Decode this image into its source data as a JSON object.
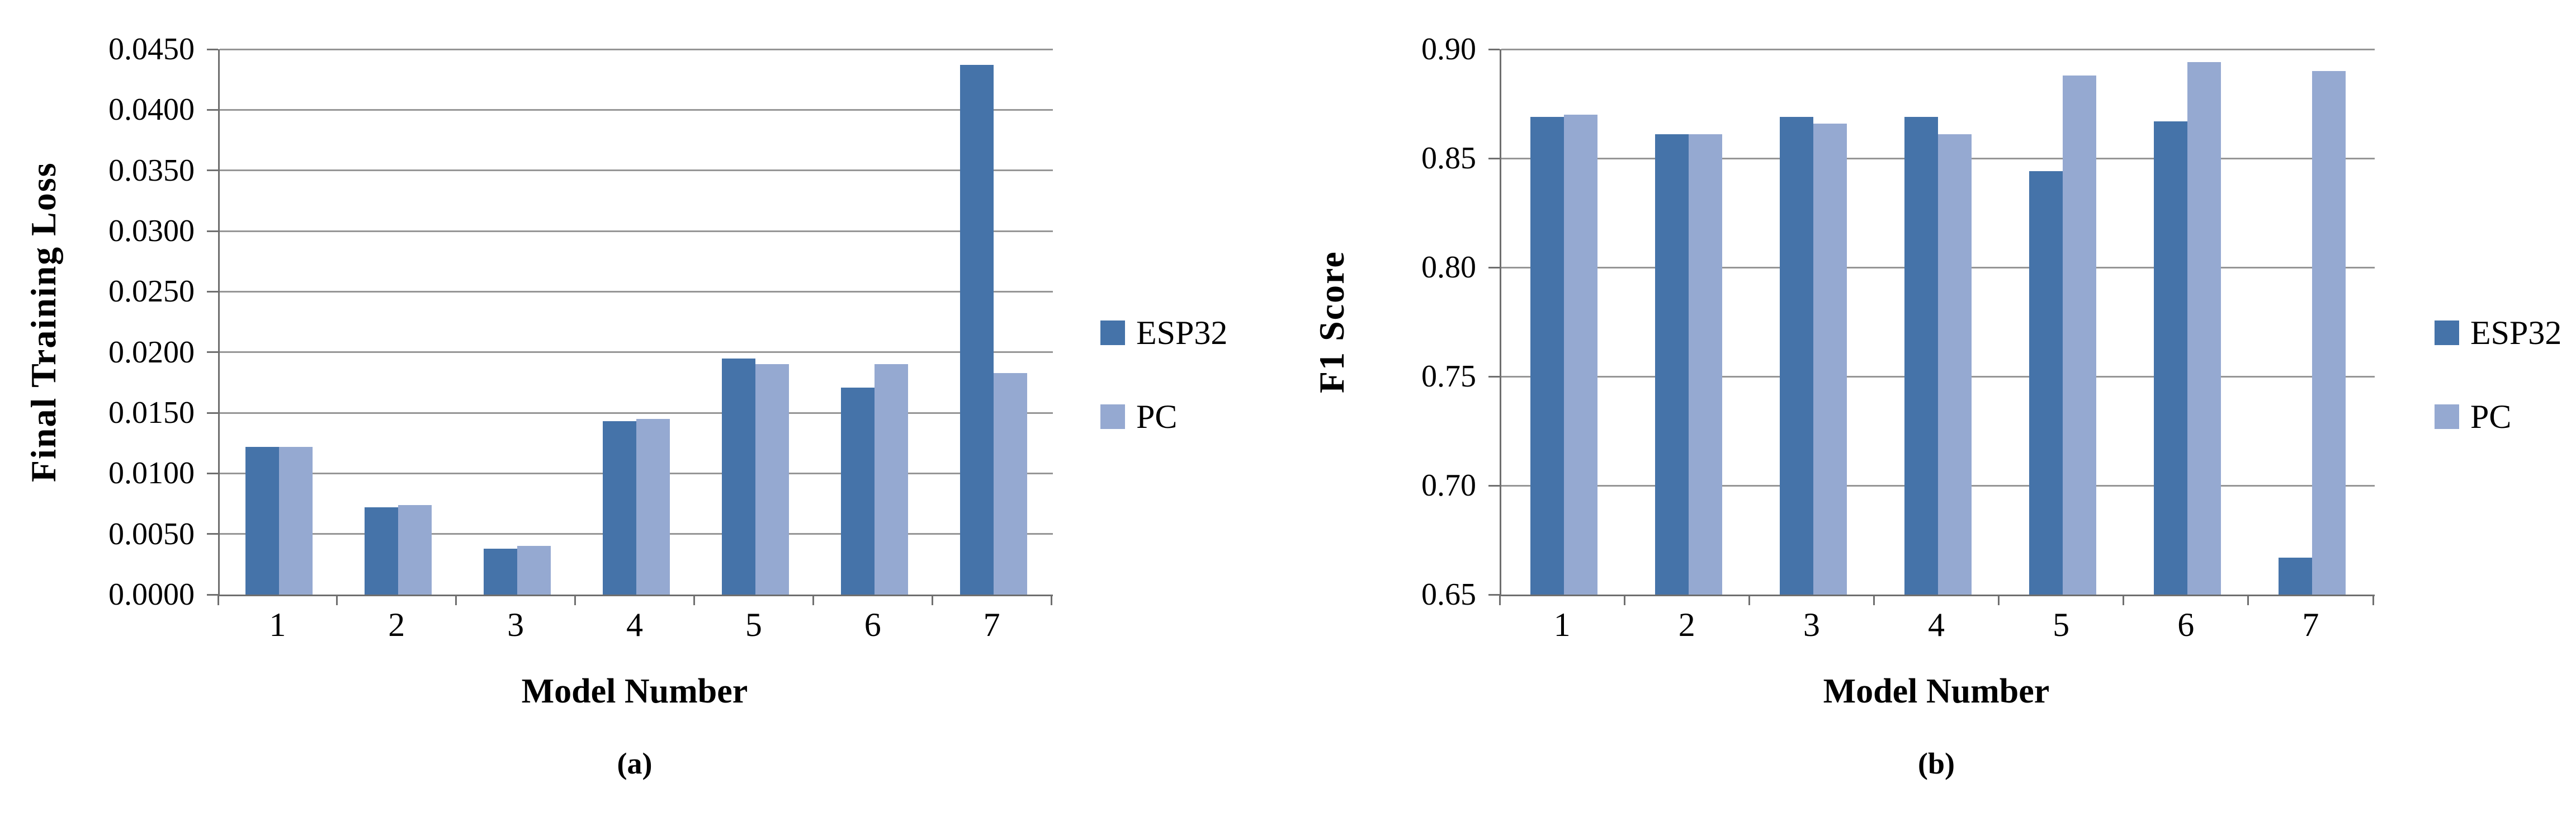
{
  "colors": {
    "esp32": "#4573A9",
    "pc": "#95A9D1",
    "gridline": "#969696",
    "axis": "#6F6F6F"
  },
  "chart_data": [
    {
      "type": "bar",
      "panel": "a",
      "caption": "(a)",
      "title": "",
      "ylabel": "Final Training Loss",
      "xlabel": "Model Number",
      "categories": [
        "1",
        "2",
        "3",
        "4",
        "5",
        "6",
        "7"
      ],
      "series": [
        {
          "name": "ESP32",
          "color": "#4573A9",
          "values": [
            0.0122,
            0.0072,
            0.0038,
            0.0143,
            0.0195,
            0.0171,
            0.0437
          ]
        },
        {
          "name": "PC",
          "color": "#95A9D1",
          "values": [
            0.0122,
            0.0074,
            0.004,
            0.0145,
            0.019,
            0.019,
            0.0183
          ]
        }
      ],
      "ylim": [
        0.0,
        0.045
      ],
      "ytick_step": 0.005,
      "yticks": [
        "0.0000",
        "0.0050",
        "0.0100",
        "0.0150",
        "0.0200",
        "0.0250",
        "0.0300",
        "0.0350",
        "0.0400",
        "0.0450"
      ],
      "grid": true,
      "legend_position": "right"
    },
    {
      "type": "bar",
      "panel": "b",
      "caption": "(b)",
      "title": "",
      "ylabel": "F1 Score",
      "xlabel": "Model Number",
      "categories": [
        "1",
        "2",
        "3",
        "4",
        "5",
        "6",
        "7"
      ],
      "series": [
        {
          "name": "ESP32",
          "color": "#4573A9",
          "values": [
            0.869,
            0.861,
            0.869,
            0.869,
            0.844,
            0.867,
            0.667
          ]
        },
        {
          "name": "PC",
          "color": "#95A9D1",
          "values": [
            0.87,
            0.861,
            0.866,
            0.861,
            0.888,
            0.894,
            0.89
          ]
        }
      ],
      "ylim": [
        0.65,
        0.9
      ],
      "ytick_step": 0.05,
      "yticks": [
        "0.65",
        "0.70",
        "0.75",
        "0.80",
        "0.85",
        "0.90"
      ],
      "grid": true,
      "legend_position": "right"
    }
  ]
}
